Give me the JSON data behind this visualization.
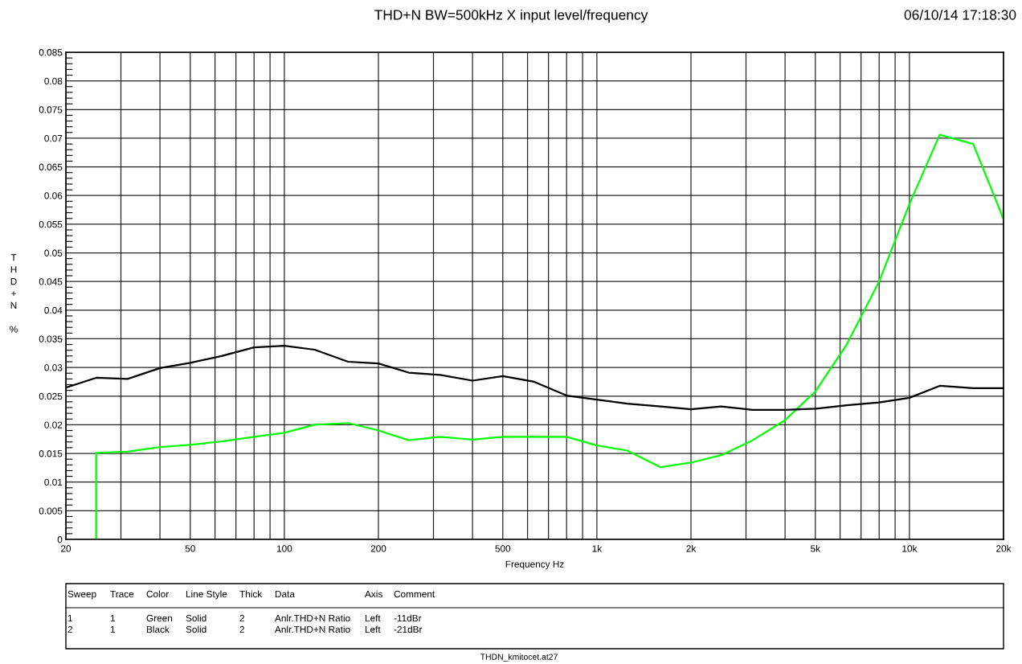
{
  "chart_data": {
    "type": "line",
    "title": "THD+N BW=500kHz X input level/frequency",
    "xlabel": "Frequency Hz",
    "ylabel": "THD+N %",
    "annotations": [
      "06/10/14 17:18:30",
      "THDN_kmitocet.at27",
      "Sweep",
      "Trace",
      "Color",
      "Line Style",
      "Thick",
      "Data",
      "Axis",
      "Comment",
      "1",
      "1",
      "Green",
      "Solid",
      "2",
      "Anlr.THD+N Ratio",
      "Left",
      "-11dBr",
      "2",
      "1",
      "Black",
      "Solid",
      "2",
      "Anlr.THD+N Ratio",
      "Left",
      "-21dBr"
    ],
    "log": "x",
    "xlim": [
      20,
      20000
    ],
    "xticks": [
      20,
      {
        "value": 30,
        "label": null
      },
      {
        "value": 40,
        "label": null
      },
      50,
      {
        "value": 60,
        "label": null
      },
      {
        "value": 70,
        "label": null
      },
      {
        "value": 80,
        "label": null
      },
      {
        "value": 90,
        "label": null
      },
      100,
      200,
      {
        "value": 300,
        "label": null
      },
      {
        "value": 400,
        "label": null
      },
      500,
      {
        "value": 600,
        "label": null
      },
      {
        "value": 700,
        "label": null
      },
      {
        "value": 800,
        "label": null
      },
      {
        "value": 900,
        "label": null
      },
      {
        "value": 1000,
        "label": "1k"
      },
      {
        "value": 2000,
        "label": "2k"
      },
      {
        "value": 3000,
        "label": null
      },
      {
        "value": 4000,
        "label": null
      },
      {
        "value": 5000,
        "label": "5k"
      },
      {
        "value": 6000,
        "label": null
      },
      {
        "value": 7000,
        "label": null
      },
      {
        "value": 8000,
        "label": null
      },
      {
        "value": 9000,
        "label": null
      },
      {
        "value": 10000,
        "label": "10k"
      },
      {
        "value": 20000,
        "label": "20k"
      }
    ],
    "ylim": [
      0,
      0.085
    ],
    "yticks": [
      0,
      0.005,
      0.01,
      0.015,
      0.02,
      0.025,
      0.03,
      0.035,
      0.04,
      0.045,
      0.05,
      0.055,
      0.06,
      0.065,
      0.07,
      0.075,
      0.08,
      0.085
    ],
    "grid": true,
    "line_style": "solid",
    "series": [
      {
        "color": "#00ff00",
        "x": [
          25,
          25,
          31.5,
          40,
          50,
          63,
          80,
          100,
          125,
          160,
          200,
          250,
          315,
          400,
          500,
          630,
          800,
          1000,
          1250,
          1600,
          2000,
          2500,
          3150,
          4000,
          5000,
          6300,
          8000,
          10000,
          12500,
          16000,
          20000
        ],
        "values": [
          0,
          0.0151,
          0.0153,
          0.0161,
          0.0165,
          0.0171,
          0.0179,
          0.0186,
          0.02,
          0.0203,
          0.019,
          0.0173,
          0.0179,
          0.0174,
          0.0179,
          0.0179,
          0.0179,
          0.0164,
          0.0155,
          0.0126,
          0.0134,
          0.0147,
          0.0173,
          0.0208,
          0.0258,
          0.034,
          0.045,
          0.0585,
          0.0706,
          0.069,
          0.0559
        ]
      },
      {
        "color": "#000000",
        "x": [
          20,
          25,
          31.5,
          40,
          50,
          63,
          80,
          100,
          125,
          160,
          200,
          250,
          315,
          400,
          500,
          630,
          800,
          1000,
          1250,
          1600,
          2000,
          2500,
          3150,
          4000,
          5000,
          6300,
          8000,
          10000,
          12500,
          16000,
          20000
        ],
        "values": [
          0.0265,
          0.0282,
          0.028,
          0.0299,
          0.0308,
          0.032,
          0.0335,
          0.0338,
          0.0331,
          0.031,
          0.0307,
          0.0291,
          0.0287,
          0.0277,
          0.0285,
          0.0275,
          0.0251,
          0.0244,
          0.0237,
          0.0232,
          0.0227,
          0.0232,
          0.0226,
          0.0226,
          0.0228,
          0.0234,
          0.0239,
          0.0247,
          0.0268,
          0.0264,
          0.0264
        ]
      }
    ]
  }
}
